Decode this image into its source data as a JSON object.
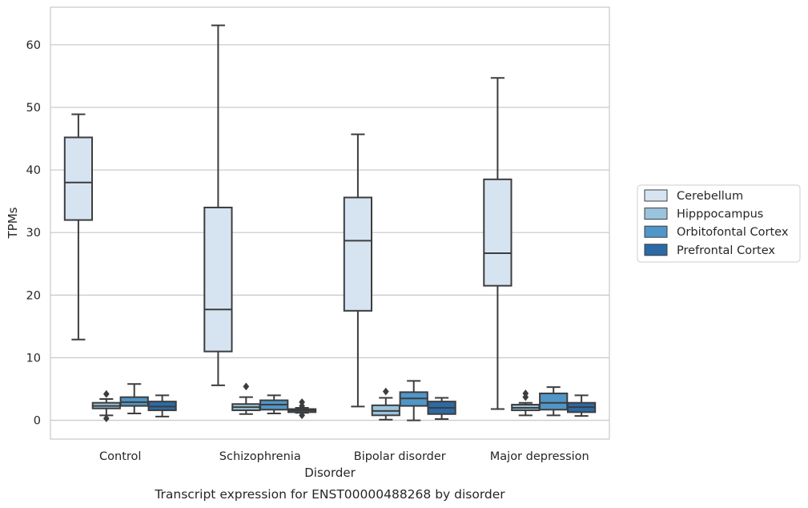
{
  "chart_data": {
    "type": "box",
    "title": "",
    "caption": "Transcript expression for ENST00000488268 by disorder",
    "xlabel": "Disorder",
    "ylabel": "TPMs",
    "ylim": [
      -3,
      66
    ],
    "yticks": [
      0,
      10,
      20,
      30,
      40,
      50,
      60
    ],
    "grid": "horizontal",
    "legend_position": "right",
    "categories": [
      "Control",
      "Schizophrenia",
      "Bipolar disorder",
      "Major depression"
    ],
    "series": [
      {
        "name": "Cerebellum",
        "color": "#d6e4f2",
        "boxes": [
          {
            "whisker_low": 12.9,
            "q1": 32.0,
            "median": 38.0,
            "q3": 45.2,
            "whisker_high": 48.9,
            "outliers": []
          },
          {
            "whisker_low": 5.6,
            "q1": 11.0,
            "median": 17.7,
            "q3": 34.0,
            "whisker_high": 63.1,
            "outliers": []
          },
          {
            "whisker_low": 2.2,
            "q1": 17.5,
            "median": 28.7,
            "q3": 35.6,
            "whisker_high": 45.7,
            "outliers": []
          },
          {
            "whisker_low": 1.8,
            "q1": 21.5,
            "median": 26.7,
            "q3": 38.5,
            "whisker_high": 54.7,
            "outliers": []
          }
        ]
      },
      {
        "name": "Hipppocampus",
        "color": "#9ac3dd",
        "boxes": [
          {
            "whisker_low": 0.8,
            "q1": 1.9,
            "median": 2.3,
            "q3": 2.8,
            "whisker_high": 3.4,
            "outliers": [
              0.3,
              4.2
            ]
          },
          {
            "whisker_low": 1.0,
            "q1": 1.6,
            "median": 2.1,
            "q3": 2.6,
            "whisker_high": 3.7,
            "outliers": [
              5.4
            ]
          },
          {
            "whisker_low": 0.1,
            "q1": 0.8,
            "median": 1.5,
            "q3": 2.4,
            "whisker_high": 3.6,
            "outliers": [
              4.6
            ]
          },
          {
            "whisker_low": 0.8,
            "q1": 1.6,
            "median": 2.0,
            "q3": 2.5,
            "whisker_high": 2.8,
            "outliers": [
              3.7,
              4.3
            ]
          }
        ]
      },
      {
        "name": "Orbitofontal Cortex",
        "color": "#5096c8",
        "boxes": [
          {
            "whisker_low": 1.1,
            "q1": 2.3,
            "median": 2.9,
            "q3": 3.7,
            "whisker_high": 5.8,
            "outliers": []
          },
          {
            "whisker_low": 1.1,
            "q1": 1.7,
            "median": 2.5,
            "q3": 3.2,
            "whisker_high": 4.0,
            "outliers": []
          },
          {
            "whisker_low": 0.0,
            "q1": 2.3,
            "median": 3.5,
            "q3": 4.5,
            "whisker_high": 6.3,
            "outliers": []
          },
          {
            "whisker_low": 0.8,
            "q1": 1.7,
            "median": 2.8,
            "q3": 4.3,
            "whisker_high": 5.3,
            "outliers": []
          }
        ]
      },
      {
        "name": "Prefrontal Cortex",
        "color": "#2b6aa6",
        "boxes": [
          {
            "whisker_low": 0.6,
            "q1": 1.6,
            "median": 2.2,
            "q3": 3.0,
            "whisker_high": 4.0,
            "outliers": []
          },
          {
            "whisker_low": 1.2,
            "q1": 1.3,
            "median": 1.6,
            "q3": 1.8,
            "whisker_high": 2.0,
            "outliers": [
              0.8,
              2.3,
              2.9
            ]
          },
          {
            "whisker_low": 0.2,
            "q1": 1.0,
            "median": 2.0,
            "q3": 3.0,
            "whisker_high": 3.6,
            "outliers": []
          },
          {
            "whisker_low": 0.7,
            "q1": 1.3,
            "median": 2.1,
            "q3": 2.8,
            "whisker_high": 4.0,
            "outliers": []
          }
        ]
      }
    ]
  }
}
